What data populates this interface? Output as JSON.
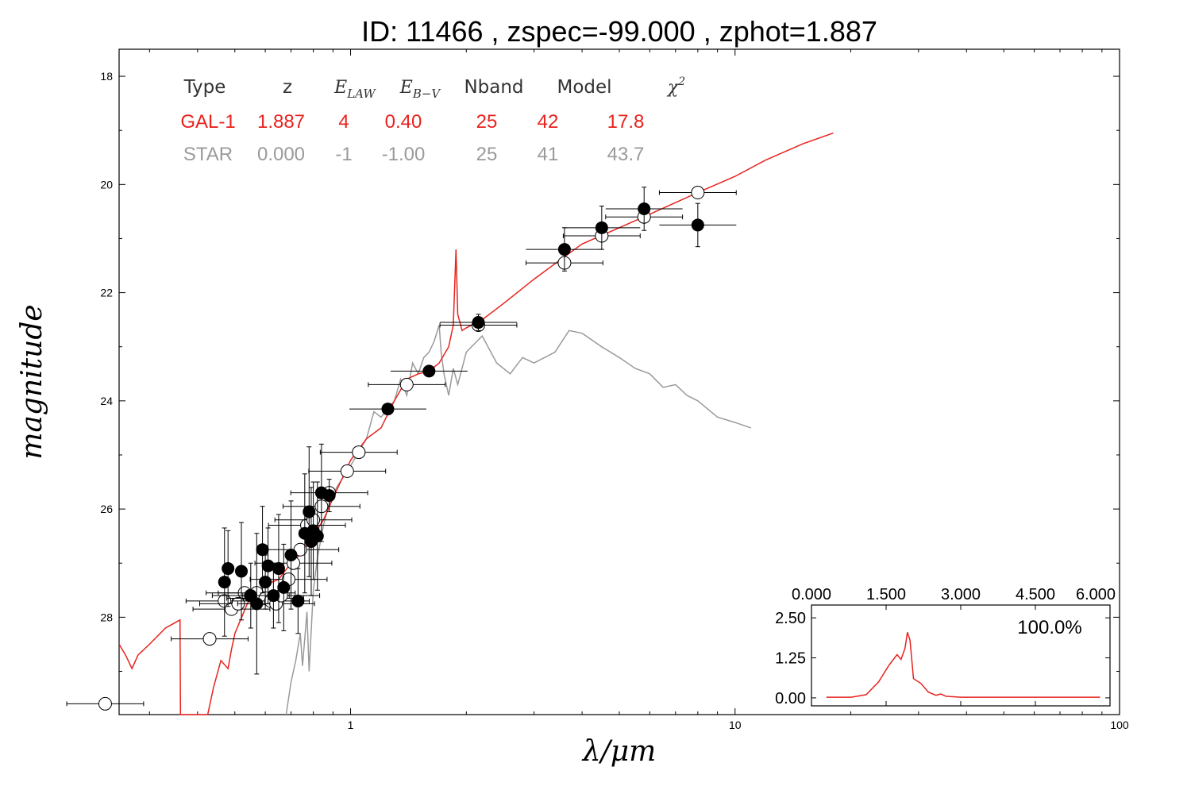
{
  "chart_data": [
    {
      "type": "scatter",
      "title": "ID:  11466 , zspec=-99.000 , zphot=1.887",
      "xlabel": "λ/μm",
      "ylabel": "magnitude",
      "xscale": "log",
      "xlim": [
        0.25,
        100
      ],
      "ylim": [
        29.8,
        17.5
      ],
      "x_ticks": [
        "1",
        "10",
        "100"
      ],
      "y_ticks": [
        "18",
        "20",
        "22",
        "24",
        "26",
        "28"
      ],
      "grid": false,
      "fit_table": {
        "headers": [
          "Type",
          "z",
          "E_LAW",
          "E_B-V",
          "Nband",
          "Model",
          "χ²"
        ],
        "rows": [
          {
            "name": "GAL-1",
            "color": "#e8231e",
            "values": [
              "GAL-1",
              "1.887",
              "4",
              "0.40",
              "25",
              "42",
              "17.8"
            ]
          },
          {
            "name": "STAR",
            "color": "#9a9a9a",
            "values": [
              "STAR",
              "0.000",
              "-1",
              "-1.00",
              "25",
              "41",
              "43.7"
            ]
          }
        ]
      },
      "observed_points": [
        {
          "x": 0.47,
          "y": 27.35,
          "yerr": 1.0
        },
        {
          "x": 0.48,
          "y": 27.1,
          "yerr": 0.7
        },
        {
          "x": 0.52,
          "y": 27.15,
          "yerr": 0.9
        },
        {
          "x": 0.55,
          "y": 27.6,
          "yerr": 0.6
        },
        {
          "x": 0.57,
          "y": 27.75,
          "yerr": 1.3
        },
        {
          "x": 0.59,
          "y": 26.75,
          "yerr": 0.8
        },
        {
          "x": 0.6,
          "y": 27.35,
          "yerr": 0.5
        },
        {
          "x": 0.61,
          "y": 27.05,
          "yerr": 0.7
        },
        {
          "x": 0.63,
          "y": 27.6,
          "yerr": 0.6
        },
        {
          "x": 0.65,
          "y": 27.1,
          "yerr": 1.0
        },
        {
          "x": 0.67,
          "y": 27.45,
          "yerr": 0.8
        },
        {
          "x": 0.7,
          "y": 26.85,
          "yerr": 1.0
        },
        {
          "x": 0.73,
          "y": 27.7,
          "yerr": 0.6
        },
        {
          "x": 0.76,
          "y": 26.45,
          "yerr": 1.1
        },
        {
          "x": 0.78,
          "y": 26.05,
          "yerr": 1.2
        },
        {
          "x": 0.79,
          "y": 26.6,
          "yerr": 1.0
        },
        {
          "x": 0.8,
          "y": 26.4,
          "yerr": 0.9
        },
        {
          "x": 0.82,
          "y": 26.5,
          "yerr": 1.0
        },
        {
          "x": 0.84,
          "y": 25.7,
          "yerr": 0.9
        },
        {
          "x": 0.88,
          "y": 25.75,
          "yerr": 0.3
        },
        {
          "x": 1.25,
          "y": 24.15,
          "yerr": 0.05
        },
        {
          "x": 1.6,
          "y": 23.45,
          "yerr": 0.05
        },
        {
          "x": 2.15,
          "y": 22.55,
          "yerr": 0.15
        },
        {
          "x": 3.6,
          "y": 21.2,
          "yerr": 0.4
        },
        {
          "x": 4.5,
          "y": 20.8,
          "yerr": 0.4
        },
        {
          "x": 5.8,
          "y": 20.45,
          "yerr": 0.4
        },
        {
          "x": 8.0,
          "y": 20.75,
          "yerr": 0.4
        }
      ],
      "model_points": [
        {
          "x": 0.23,
          "y": 29.6
        },
        {
          "x": 0.43,
          "y": 28.4
        },
        {
          "x": 0.47,
          "y": 27.7
        },
        {
          "x": 0.49,
          "y": 27.85
        },
        {
          "x": 0.51,
          "y": 27.75
        },
        {
          "x": 0.53,
          "y": 27.55
        },
        {
          "x": 0.55,
          "y": 27.6
        },
        {
          "x": 0.57,
          "y": 27.55
        },
        {
          "x": 0.6,
          "y": 27.65
        },
        {
          "x": 0.62,
          "y": 27.7
        },
        {
          "x": 0.64,
          "y": 27.75
        },
        {
          "x": 0.66,
          "y": 27.6
        },
        {
          "x": 0.69,
          "y": 27.3
        },
        {
          "x": 0.71,
          "y": 27.0
        },
        {
          "x": 0.74,
          "y": 26.75
        },
        {
          "x": 0.77,
          "y": 26.3
        },
        {
          "x": 0.8,
          "y": 26.2
        },
        {
          "x": 0.84,
          "y": 25.95
        },
        {
          "x": 0.88,
          "y": 25.7
        },
        {
          "x": 0.98,
          "y": 25.3
        },
        {
          "x": 1.05,
          "y": 24.95
        },
        {
          "x": 1.4,
          "y": 23.7
        },
        {
          "x": 2.15,
          "y": 22.6
        },
        {
          "x": 3.6,
          "y": 21.45
        },
        {
          "x": 4.5,
          "y": 20.95
        },
        {
          "x": 5.8,
          "y": 20.6
        },
        {
          "x": 8.0,
          "y": 20.15
        }
      ],
      "galaxy_sed": [
        [
          0.25,
          28.5
        ],
        [
          0.26,
          28.7
        ],
        [
          0.27,
          28.95
        ],
        [
          0.28,
          28.7
        ],
        [
          0.3,
          28.5
        ],
        [
          0.33,
          28.2
        ],
        [
          0.36,
          28.05
        ],
        [
          0.361,
          29.8
        ],
        [
          0.425,
          29.8
        ],
        [
          0.44,
          29.3
        ],
        [
          0.46,
          28.8
        ],
        [
          0.48,
          28.95
        ],
        [
          0.49,
          28.6
        ],
        [
          0.5,
          28.3
        ],
        [
          0.55,
          27.6
        ],
        [
          0.6,
          27.4
        ],
        [
          0.65,
          27.3
        ],
        [
          0.7,
          27.0
        ],
        [
          0.75,
          26.8
        ],
        [
          0.8,
          26.5
        ],
        [
          0.85,
          26.2
        ],
        [
          0.9,
          25.8
        ],
        [
          1.0,
          25.1
        ],
        [
          1.1,
          24.7
        ],
        [
          1.2,
          24.5
        ],
        [
          1.3,
          24.0
        ],
        [
          1.4,
          23.6
        ],
        [
          1.5,
          23.5
        ],
        [
          1.6,
          23.45
        ],
        [
          1.7,
          23.3
        ],
        [
          1.8,
          23.0
        ],
        [
          1.85,
          22.6
        ],
        [
          1.88,
          21.2
        ],
        [
          1.9,
          22.4
        ],
        [
          1.95,
          22.7
        ],
        [
          2.0,
          22.65
        ],
        [
          2.2,
          22.5
        ],
        [
          2.5,
          22.2
        ],
        [
          3.0,
          21.75
        ],
        [
          3.5,
          21.4
        ],
        [
          4.0,
          21.1
        ],
        [
          5.0,
          20.8
        ],
        [
          6.0,
          20.55
        ],
        [
          8.0,
          20.15
        ],
        [
          10.0,
          19.85
        ],
        [
          12.0,
          19.55
        ],
        [
          15.0,
          19.25
        ],
        [
          18.0,
          19.05
        ]
      ],
      "star_sed": [
        [
          0.68,
          29.8
        ],
        [
          0.7,
          29.2
        ],
        [
          0.72,
          28.8
        ],
        [
          0.74,
          28.3
        ],
        [
          0.75,
          28.9
        ],
        [
          0.77,
          27.9
        ],
        [
          0.78,
          29.0
        ],
        [
          0.8,
          27.5
        ],
        [
          0.82,
          26.9
        ],
        [
          0.85,
          26.3
        ],
        [
          0.88,
          25.9
        ],
        [
          0.92,
          25.6
        ],
        [
          1.0,
          25.2
        ],
        [
          1.1,
          24.7
        ],
        [
          1.15,
          24.2
        ],
        [
          1.2,
          24.3
        ],
        [
          1.3,
          24.0
        ],
        [
          1.35,
          23.6
        ],
        [
          1.4,
          23.9
        ],
        [
          1.45,
          23.3
        ],
        [
          1.5,
          23.5
        ],
        [
          1.55,
          23.2
        ],
        [
          1.6,
          23.1
        ],
        [
          1.65,
          22.9
        ],
        [
          1.7,
          22.6
        ],
        [
          1.72,
          23.1
        ],
        [
          1.75,
          23.5
        ],
        [
          1.8,
          23.9
        ],
        [
          1.85,
          23.4
        ],
        [
          1.9,
          23.7
        ],
        [
          2.0,
          23.1
        ],
        [
          2.2,
          22.8
        ],
        [
          2.4,
          23.3
        ],
        [
          2.6,
          23.5
        ],
        [
          2.8,
          23.2
        ],
        [
          3.0,
          23.3
        ],
        [
          3.4,
          23.1
        ],
        [
          3.7,
          22.7
        ],
        [
          4.0,
          22.75
        ],
        [
          4.5,
          23.0
        ],
        [
          5.0,
          23.2
        ],
        [
          5.5,
          23.4
        ],
        [
          6.0,
          23.5
        ],
        [
          6.5,
          23.75
        ],
        [
          7.0,
          23.7
        ],
        [
          7.5,
          23.9
        ],
        [
          8.0,
          24.0
        ],
        [
          9.0,
          24.3
        ],
        [
          10.0,
          24.4
        ],
        [
          11.0,
          24.5
        ]
      ],
      "colors": {
        "galaxy": "#e8231e",
        "star": "#9a9a9a"
      }
    },
    {
      "type": "line",
      "title": "",
      "xlim": [
        0,
        6
      ],
      "ylim": [
        -0.25,
        2.9
      ],
      "x_ticks": [
        "0.000",
        "1.500",
        "3.000",
        "4.500",
        "6.000"
      ],
      "y_ticks": [
        "0.00",
        "1.25",
        "2.50"
      ],
      "annotation": "100.0%",
      "legend": "none",
      "pdf": [
        [
          0.3,
          0.02
        ],
        [
          0.8,
          0.02
        ],
        [
          1.1,
          0.1
        ],
        [
          1.35,
          0.5
        ],
        [
          1.55,
          1.0
        ],
        [
          1.72,
          1.35
        ],
        [
          1.8,
          1.2
        ],
        [
          1.88,
          1.55
        ],
        [
          1.93,
          2.05
        ],
        [
          1.98,
          1.8
        ],
        [
          2.05,
          0.6
        ],
        [
          2.2,
          0.45
        ],
        [
          2.35,
          0.18
        ],
        [
          2.5,
          0.08
        ],
        [
          2.6,
          0.12
        ],
        [
          2.7,
          0.05
        ],
        [
          3.0,
          0.02
        ],
        [
          5.8,
          0.02
        ]
      ],
      "color": "#e8231e"
    }
  ]
}
